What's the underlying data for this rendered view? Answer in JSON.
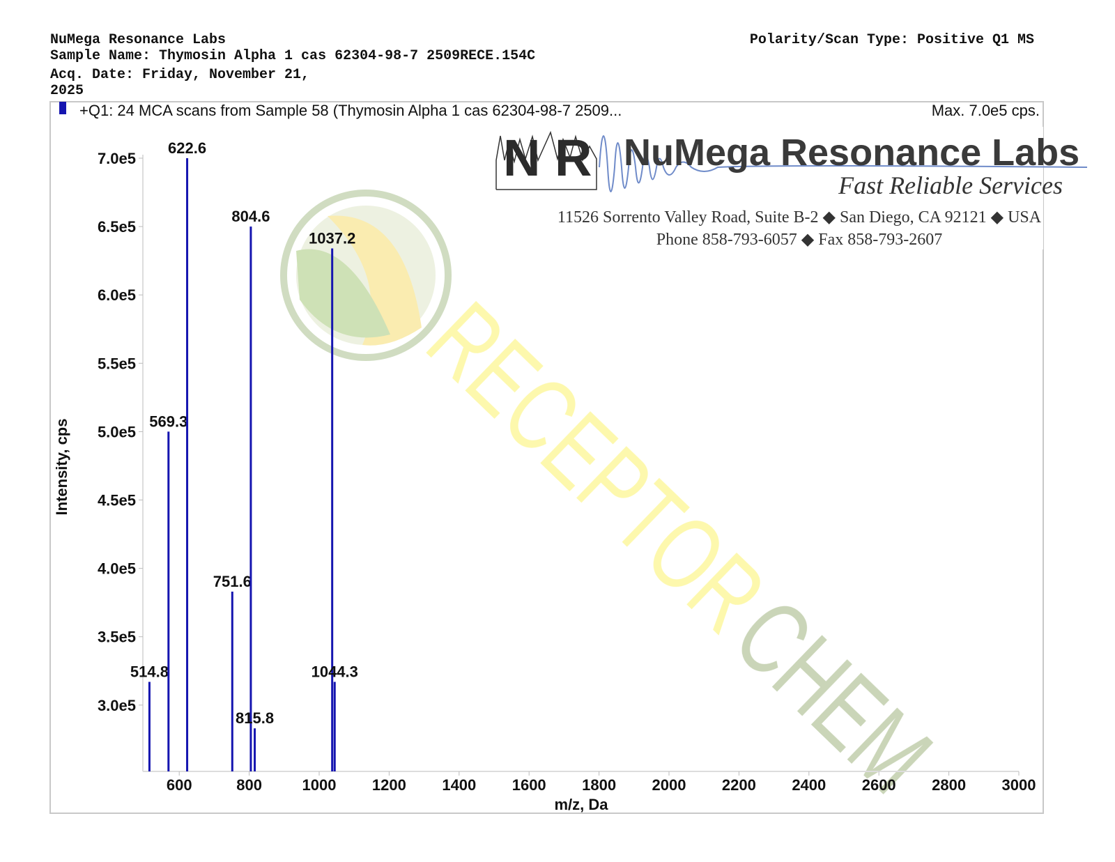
{
  "header": {
    "lab": "NuMega Resonance Labs",
    "sample": "Sample Name: Thymosin Alpha 1 cas 62304-98-7  2509RECE.154C",
    "date_line1": "Acq. Date: Friday, November 21,",
    "date_line2": "2025",
    "polarity": "Polarity/Scan Type: Positive Q1 MS"
  },
  "logo": {
    "initials": "N R",
    "name": "NuMega Resonance Labs",
    "slogan": "Fast Reliable Services",
    "address": "11526 Sorrento Valley Road, Suite B-2 ◆ San Diego, CA 92121 ◆ USA",
    "phone": "Phone 858-793-6057 ◆ Fax 858-793-2607"
  },
  "watermark": [
    "RECEPTOR",
    "CHEM"
  ],
  "chart_data": {
    "type": "stem",
    "annotation": "Max. 7.0e5 cps.",
    "xlabel": "m/z, Da",
    "ylabel": "Intensity, cps",
    "x": [
      514.8,
      569.3,
      622.6,
      751.6,
      804.6,
      815.8,
      1037.2,
      1044.3
    ],
    "series": [
      {
        "name": "+Q1: 24 MCA scans from Sample 58 (Thymosin Alpha 1 cas 62304-98-7  2509...",
        "color": "#1515b0",
        "values": [
          317000,
          500000,
          700000,
          383000,
          650000,
          283000,
          634000,
          317000
        ]
      }
    ],
    "xlim": [
      496,
      3000
    ],
    "ylim": [
      251500,
      700000
    ],
    "xticks": [
      600,
      800,
      1000,
      1200,
      1400,
      1600,
      1800,
      2000,
      2200,
      2400,
      2600,
      2800,
      3000
    ],
    "yticks": [
      {
        "value": 300000,
        "label": "3.0e5"
      },
      {
        "value": 350000,
        "label": "3.5e5"
      },
      {
        "value": 400000,
        "label": "4.0e5"
      },
      {
        "value": 450000,
        "label": "4.5e5"
      },
      {
        "value": 500000,
        "label": "5.0e5"
      },
      {
        "value": 550000,
        "label": "5.5e5"
      },
      {
        "value": 600000,
        "label": "6.0e5"
      },
      {
        "value": 650000,
        "label": "6.5e5"
      },
      {
        "value": 700000,
        "label": "7.0e5"
      }
    ]
  }
}
